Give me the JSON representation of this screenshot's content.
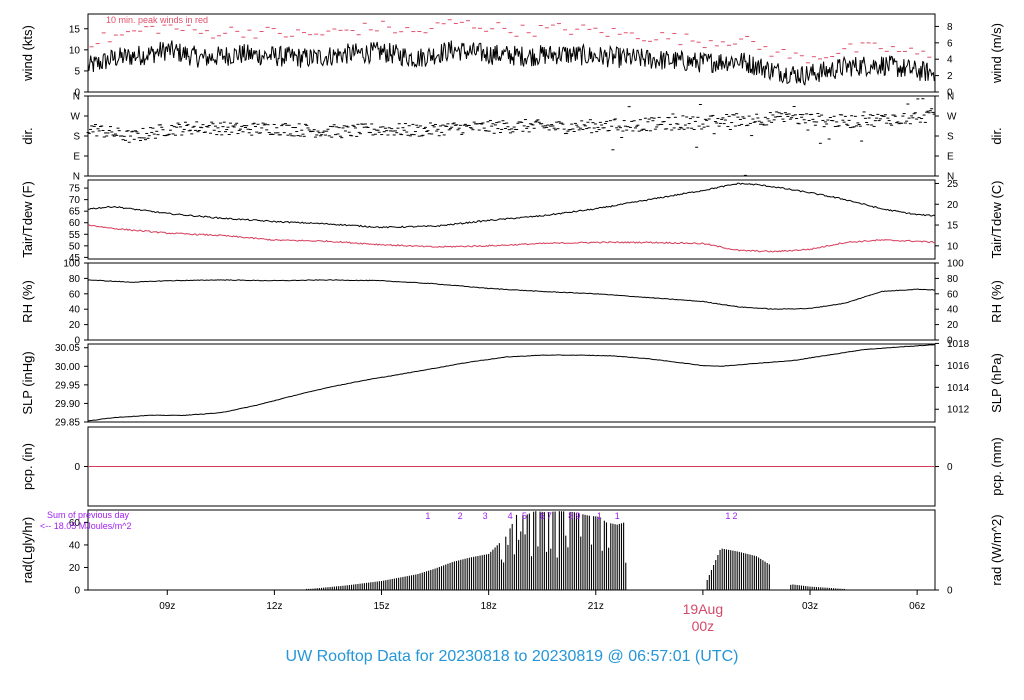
{
  "title": "UW Rooftop Data for 20230818  to  20230819 @ 06:57:01  (UTC)",
  "colors": {
    "frame": "#000000",
    "peak": "#e0506a",
    "dew": "#d63b5a",
    "annot": "#a020f0",
    "title": "#2596d6",
    "date": "#d44a6a"
  },
  "x_axis": {
    "ticks": [
      "09z",
      "12z",
      "15z",
      "18z",
      "21z",
      "00z",
      "03z",
      "06z"
    ],
    "tick_hours": [
      9,
      12,
      15,
      18,
      21,
      24,
      27,
      30
    ],
    "date_label": "19Aug",
    "midnight_label": "00z",
    "xlim_hours": [
      6.78,
      30.5
    ]
  },
  "chart_data": [
    {
      "id": "wind",
      "type": "line",
      "ylabel_left": "wind (kts)",
      "ylabel_right": "wind (m/s)",
      "ylim": [
        0,
        18.5
      ],
      "left_ticks": [
        0,
        5,
        10,
        15
      ],
      "right_ticks": [
        0,
        2,
        4,
        6,
        8
      ],
      "right_unit_factor": 1.9438,
      "annotation": "10 min. peak winds in red",
      "series": [
        {
          "x": [
            6.8,
            7.5,
            8.5,
            9.0,
            10.0,
            11.0,
            12.0,
            13.0,
            14.0,
            15.0,
            16.0,
            17.0,
            18.0,
            19.0,
            20.0,
            21.0,
            22.0,
            23.0,
            24.0,
            25.0,
            26.0,
            26.8,
            27.5,
            28.0,
            29.0,
            30.0,
            30.5
          ],
          "values": [
            6,
            8,
            9,
            10,
            8,
            9,
            8.5,
            8,
            9,
            9.5,
            8,
            10,
            9,
            8.5,
            9,
            8.5,
            8,
            7.5,
            7,
            7.5,
            5,
            4,
            5,
            6,
            6.5,
            5,
            4.5
          ]
        },
        {
          "name": "peak",
          "x": [
            6.8,
            7.5,
            8.5,
            9.0,
            10.0,
            11.0,
            12.0,
            13.0,
            14.0,
            15.0,
            16.0,
            17.0,
            18.0,
            19.0,
            20.0,
            21.0,
            22.0,
            23.0,
            24.0,
            25.0,
            26.0,
            26.8,
            27.5,
            28.0,
            29.0,
            30.0,
            30.5
          ],
          "values": [
            12,
            13,
            15,
            15.5,
            14,
            14.5,
            14,
            13.5,
            14.5,
            15.5,
            14,
            16.5,
            15.5,
            14.5,
            15,
            14.5,
            13.5,
            13,
            12,
            12.5,
            9.5,
            8,
            9,
            10,
            10.5,
            9,
            8.5
          ]
        }
      ]
    },
    {
      "id": "dir",
      "type": "scatter",
      "ylabel_left": "dir.",
      "ylabel_right": "dir.",
      "ylim": [
        0,
        360
      ],
      "tick_values": [
        0,
        90,
        180,
        270,
        360
      ],
      "tick_labels": [
        "N",
        "E",
        "S",
        "W",
        "N"
      ],
      "series": [
        {
          "x": [
            6.8,
            8.0,
            9.0,
            10.0,
            11.0,
            12.0,
            13.0,
            14.0,
            15.0,
            16.0,
            17.0,
            18.0,
            19.0,
            20.0,
            21.0,
            22.0,
            23.0,
            24.0,
            25.0,
            26.0,
            27.0,
            28.0,
            29.0,
            30.0,
            30.5
          ],
          "values": [
            215,
            175,
            210,
            220,
            210,
            215,
            205,
            200,
            210,
            205,
            215,
            220,
            225,
            220,
            225,
            230,
            235,
            240,
            255,
            260,
            255,
            245,
            255,
            265,
            275
          ]
        }
      ]
    },
    {
      "id": "temp",
      "type": "line",
      "ylabel_left": "Tair/Tdew (F)",
      "ylabel_right": "Tair/Tdew (C)",
      "ylim": [
        44.3,
        78.5
      ],
      "left_ticks": [
        45,
        50,
        55,
        60,
        65,
        70,
        75
      ],
      "right_ticks": [
        10,
        15,
        20,
        25
      ],
      "series": [
        {
          "name": "Tair",
          "x": [
            6.8,
            7.5,
            9.0,
            10.5,
            12.0,
            13.5,
            15.0,
            16.5,
            18.0,
            19.5,
            21.0,
            22.5,
            24.0,
            25.0,
            25.5,
            26.0,
            27.0,
            28.0,
            29.0,
            30.0,
            30.5
          ],
          "values": [
            66,
            67,
            64,
            62,
            60.5,
            59.5,
            58,
            58.5,
            61,
            63,
            66,
            70,
            74,
            77,
            76.5,
            75.5,
            73,
            70,
            66,
            63.5,
            63
          ]
        },
        {
          "name": "Tdew",
          "x": [
            6.8,
            7.5,
            9.0,
            10.5,
            12.0,
            13.5,
            15.0,
            16.5,
            18.0,
            19.5,
            21.0,
            22.5,
            24.0,
            25.0,
            26.0,
            27.0,
            28.0,
            29.0,
            30.0,
            30.5
          ],
          "values": [
            59,
            57.5,
            55.5,
            54.5,
            52.5,
            52,
            50.5,
            49.5,
            50,
            51,
            51.5,
            51.5,
            51,
            48,
            47.5,
            48.5,
            51.5,
            52.5,
            52,
            51.5
          ]
        }
      ]
    },
    {
      "id": "rh",
      "type": "line",
      "ylabel_left": "RH (%)",
      "ylabel_right": "RH (%)",
      "ylim": [
        0,
        100
      ],
      "left_ticks": [
        0,
        20,
        40,
        60,
        80,
        100
      ],
      "right_ticks": [
        0,
        20,
        40,
        60,
        80,
        100
      ],
      "series": [
        {
          "x": [
            6.8,
            8.0,
            9.0,
            10.5,
            12.0,
            13.5,
            15.0,
            16.5,
            18.0,
            19.5,
            21.0,
            22.5,
            24.0,
            25.0,
            26.0,
            27.0,
            28.0,
            29.0,
            30.0,
            30.5
          ],
          "values": [
            78,
            75,
            77,
            78,
            77,
            78,
            77,
            73,
            67,
            63,
            60,
            55,
            50,
            43,
            40,
            41,
            48,
            63,
            66,
            65
          ]
        }
      ]
    },
    {
      "id": "slp",
      "type": "line",
      "ylabel_left": "SLP (inHg)",
      "ylabel_right": "SLP (hPa)",
      "ylim": [
        29.85,
        30.06
      ],
      "left_ticks": [
        29.85,
        29.9,
        29.95,
        30.0,
        30.05
      ],
      "left_tick_labels": [
        "29.85",
        "29.90",
        "29.95",
        "30.00",
        "30.05"
      ],
      "right_ticks": [
        1012,
        1014,
        1016,
        1018
      ],
      "right_unit_factor": 33.8639,
      "series": [
        {
          "x": [
            6.8,
            7.5,
            8.5,
            9.5,
            10.5,
            11.5,
            12.5,
            13.5,
            14.5,
            15.5,
            16.5,
            17.5,
            18.5,
            19.5,
            20.5,
            21.5,
            22.5,
            23.5,
            24.0,
            24.5,
            25.5,
            26.5,
            27.5,
            28.5,
            29.5,
            30.5
          ],
          "values": [
            29.853,
            29.862,
            29.868,
            29.868,
            29.875,
            29.895,
            29.92,
            29.943,
            29.962,
            29.978,
            29.995,
            30.012,
            30.025,
            30.03,
            30.03,
            30.028,
            30.02,
            30.008,
            30.002,
            30.0,
            30.008,
            30.015,
            30.03,
            30.045,
            30.052,
            30.058
          ]
        }
      ]
    },
    {
      "id": "pcp",
      "type": "line",
      "ylabel_left": "pcp. (in)",
      "ylabel_right": "pcp. (mm)",
      "ylim": [
        -1,
        1
      ],
      "left_ticks": [
        0
      ],
      "right_ticks": [
        0
      ],
      "series": [
        {
          "x": [
            6.8,
            30.5
          ],
          "values": [
            0,
            0
          ]
        }
      ]
    },
    {
      "id": "rad",
      "type": "bar",
      "ylabel_left": "rad(Lgly/hr)",
      "ylabel_right": "rad (W/m^2)",
      "ylim": [
        0,
        71
      ],
      "left_ticks": [
        0,
        20,
        40,
        60
      ],
      "right_ticks": [
        0,
        200,
        400,
        600,
        800
      ],
      "right_unit_factor": 11.63,
      "annotation_lines": [
        "Sum of previous day",
        "<-- 18.05 MJoules/m^2"
      ],
      "sun_hours": [
        "1",
        "2",
        "3",
        "4",
        "5",
        "6",
        "7",
        "8",
        "9",
        "1",
        "1",
        "1",
        "2"
      ],
      "sun_hour_x": [
        16.3,
        17.2,
        17.9,
        18.6,
        19.0,
        19.5,
        19.7,
        20.3,
        20.5,
        21.1,
        21.6,
        24.7,
        24.9
      ],
      "series": [
        {
          "x": [
            13.0,
            14.0,
            15.0,
            16.0,
            16.5,
            17.0,
            17.5,
            18.0,
            18.5,
            18.8,
            19.0,
            19.3,
            19.6,
            20.0,
            20.4,
            20.8,
            21.1,
            21.3,
            21.6,
            21.8,
            24.0,
            24.5,
            25.0,
            25.5,
            25.9,
            26.0,
            26.5,
            27.0,
            27.5,
            27.9
          ],
          "values": [
            1,
            4,
            8,
            14,
            19,
            25,
            29,
            32,
            48,
            68,
            66,
            70,
            69,
            70,
            69,
            66,
            65,
            60,
            58,
            60,
            0,
            37,
            34,
            30,
            22,
            0,
            5,
            3,
            2,
            1
          ]
        }
      ]
    }
  ]
}
